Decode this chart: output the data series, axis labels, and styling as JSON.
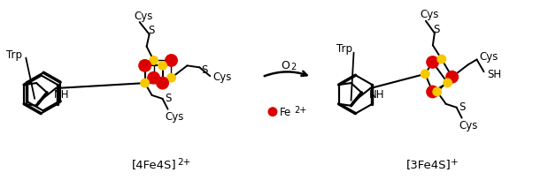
{
  "background": "#ffffff",
  "figsize": [
    6.02,
    2.05
  ],
  "dpi": 100,
  "fe_color": "#dd0000",
  "s_color": "#f5c800",
  "line_color": "#000000",
  "label_4fe4s": "[4Fe4S]",
  "label_4fe4s_super": "2+",
  "label_3fe4s": "[3Fe4S]",
  "label_3fe4s_super": "+",
  "trp_label": "Trp",
  "nh_label": "NH",
  "cys_label": "Cys",
  "s_label": "S",
  "sh_label": "SH",
  "o2_label": "O",
  "o2_sub": "2",
  "fe2plus_label": "Fe",
  "fe2plus_super": "2+"
}
